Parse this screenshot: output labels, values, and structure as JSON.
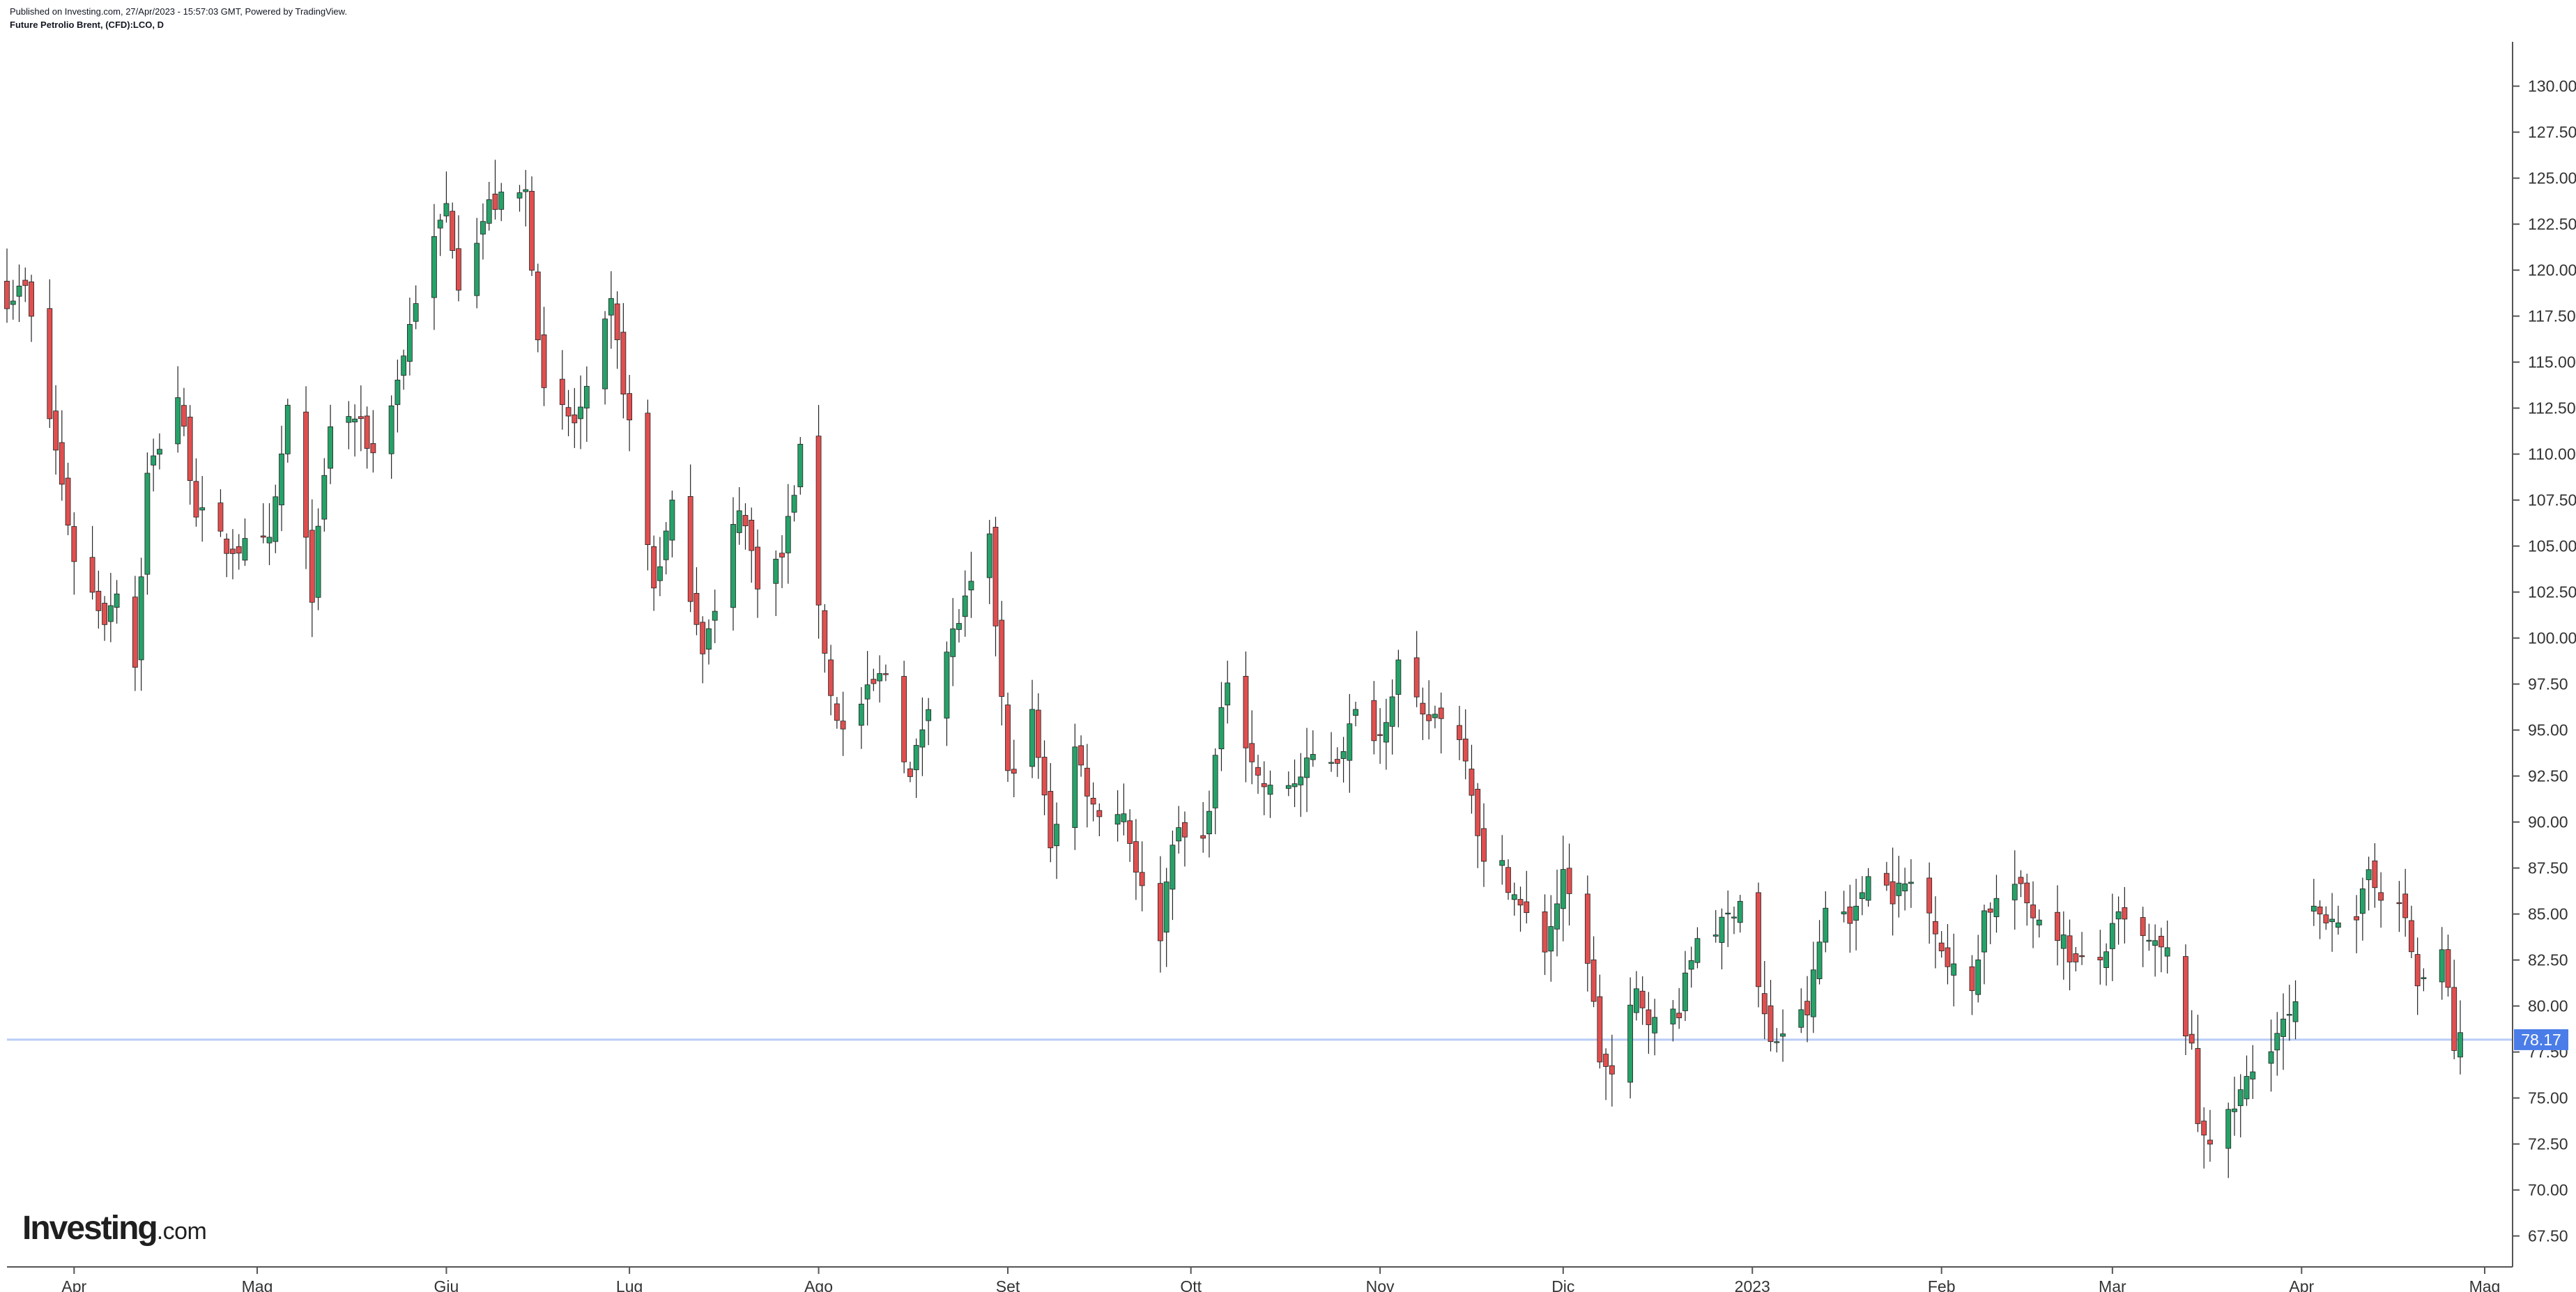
{
  "header": {
    "published": "Published on Investing.com, 27/Apr/2023 - 15:57:03 GMT, Powered by TradingView.",
    "instrument": "Future Petrolio Brent, (CFD):LCO, D"
  },
  "logo": {
    "main": "Investing",
    "suffix": ".com"
  },
  "colors": {
    "up": "#26a269",
    "down": "#e04f4f",
    "wick": "#222222",
    "price_line": "#b8cdf5",
    "price_label_bg": "#4a7de8"
  },
  "chart_data": {
    "type": "candlestick",
    "y_ticks": [
      "130.00",
      "127.50",
      "125.00",
      "122.50",
      "120.00",
      "117.50",
      "115.00",
      "112.50",
      "110.00",
      "107.50",
      "105.00",
      "102.50",
      "100.00",
      "97.50",
      "95.00",
      "92.50",
      "90.00",
      "87.50",
      "85.00",
      "82.50",
      "80.00",
      "77.50",
      "75.00",
      "72.50",
      "70.00",
      "67.50"
    ],
    "ylim": [
      66.5,
      131.5
    ],
    "x_labels": [
      {
        "label": "Apr",
        "date": "2022-04-01"
      },
      {
        "label": "Mag",
        "date": "2022-05-01"
      },
      {
        "label": "Giu",
        "date": "2022-06-01"
      },
      {
        "label": "Lug",
        "date": "2022-07-01"
      },
      {
        "label": "Ago",
        "date": "2022-08-01"
      },
      {
        "label": "Set",
        "date": "2022-09-01"
      },
      {
        "label": "Ott",
        "date": "2022-10-01"
      },
      {
        "label": "Nov",
        "date": "2022-11-01"
      },
      {
        "label": "Dic",
        "date": "2022-12-01"
      },
      {
        "label": "2023",
        "date": "2023-01-01"
      },
      {
        "label": "Feb",
        "date": "2023-02-01"
      },
      {
        "label": "Mar",
        "date": "2023-03-01"
      },
      {
        "label": "Apr",
        "date": "2023-04-01"
      },
      {
        "label": "Mag",
        "date": "2023-05-01"
      }
    ],
    "x_start": "2022-03-21",
    "x_end": "2023-05-05",
    "last_price": "78.17",
    "anchors": [
      {
        "date": "2022-03-21",
        "close": 118.5
      },
      {
        "date": "2022-03-24",
        "close": 119.0
      },
      {
        "date": "2022-03-29",
        "close": 110.2
      },
      {
        "date": "2022-04-01",
        "close": 104.4
      },
      {
        "date": "2022-04-06",
        "close": 101.1
      },
      {
        "date": "2022-04-08",
        "close": 102.8
      },
      {
        "date": "2022-04-11",
        "close": 98.5
      },
      {
        "date": "2022-04-13",
        "close": 108.8
      },
      {
        "date": "2022-04-18",
        "close": 113.2
      },
      {
        "date": "2022-04-21",
        "close": 107.0
      },
      {
        "date": "2022-04-26",
        "close": 104.9
      },
      {
        "date": "2022-05-03",
        "close": 105.0
      },
      {
        "date": "2022-05-06",
        "close": 112.4
      },
      {
        "date": "2022-05-10",
        "close": 102.5
      },
      {
        "date": "2022-05-13",
        "close": 111.6
      },
      {
        "date": "2022-05-17",
        "close": 112.0
      },
      {
        "date": "2022-05-20",
        "close": 110.0
      },
      {
        "date": "2022-05-24",
        "close": 114.0
      },
      {
        "date": "2022-05-27",
        "close": 118.5
      },
      {
        "date": "2022-06-01",
        "close": 123.5
      },
      {
        "date": "2022-06-03",
        "close": 119.5
      },
      {
        "date": "2022-06-08",
        "close": 123.5
      },
      {
        "date": "2022-06-14",
        "close": 124.2
      },
      {
        "date": "2022-06-17",
        "close": 113.1
      },
      {
        "date": "2022-06-22",
        "close": 111.7
      },
      {
        "date": "2022-06-24",
        "close": 113.1
      },
      {
        "date": "2022-06-28",
        "close": 118.0
      },
      {
        "date": "2022-07-01",
        "close": 111.6
      },
      {
        "date": "2022-07-05",
        "close": 102.8
      },
      {
        "date": "2022-07-08",
        "close": 107.0
      },
      {
        "date": "2022-07-13",
        "close": 99.6
      },
      {
        "date": "2022-07-15",
        "close": 101.2
      },
      {
        "date": "2022-07-19",
        "close": 107.4
      },
      {
        "date": "2022-07-22",
        "close": 103.2
      },
      {
        "date": "2022-07-26",
        "close": 104.4
      },
      {
        "date": "2022-07-29",
        "close": 110.0
      },
      {
        "date": "2022-08-03",
        "close": 96.8
      },
      {
        "date": "2022-08-05",
        "close": 94.9
      },
      {
        "date": "2022-08-10",
        "close": 97.4
      },
      {
        "date": "2022-08-12",
        "close": 98.2
      },
      {
        "date": "2022-08-16",
        "close": 92.3
      },
      {
        "date": "2022-08-19",
        "close": 96.7
      },
      {
        "date": "2022-08-23",
        "close": 100.2
      },
      {
        "date": "2022-08-29",
        "close": 105.1
      },
      {
        "date": "2022-09-01",
        "close": 92.4
      },
      {
        "date": "2022-09-05",
        "close": 95.7
      },
      {
        "date": "2022-09-08",
        "close": 88.9
      },
      {
        "date": "2022-09-12",
        "close": 94.0
      },
      {
        "date": "2022-09-15",
        "close": 90.8
      },
      {
        "date": "2022-09-20",
        "close": 90.5
      },
      {
        "date": "2022-09-23",
        "close": 86.2
      },
      {
        "date": "2022-09-26",
        "close": 84.0
      },
      {
        "date": "2022-09-28",
        "close": 89.3
      },
      {
        "date": "2022-10-03",
        "close": 88.9
      },
      {
        "date": "2022-10-05",
        "close": 93.4
      },
      {
        "date": "2022-10-07",
        "close": 97.9
      },
      {
        "date": "2022-10-12",
        "close": 92.4
      },
      {
        "date": "2022-10-14",
        "close": 91.6
      },
      {
        "date": "2022-10-19",
        "close": 92.4
      },
      {
        "date": "2022-10-21",
        "close": 93.5
      },
      {
        "date": "2022-10-25",
        "close": 93.5
      },
      {
        "date": "2022-10-28",
        "close": 95.8
      },
      {
        "date": "2022-11-01",
        "close": 94.7
      },
      {
        "date": "2022-11-04",
        "close": 98.6
      },
      {
        "date": "2022-11-08",
        "close": 95.4
      },
      {
        "date": "2022-11-11",
        "close": 96.0
      },
      {
        "date": "2022-11-15",
        "close": 93.9
      },
      {
        "date": "2022-11-18",
        "close": 87.6
      },
      {
        "date": "2022-11-21",
        "close": 87.5
      },
      {
        "date": "2022-11-24",
        "close": 85.3
      },
      {
        "date": "2022-11-28",
        "close": 83.2
      },
      {
        "date": "2022-12-01",
        "close": 86.9
      },
      {
        "date": "2022-12-05",
        "close": 82.7
      },
      {
        "date": "2022-12-07",
        "close": 77.2
      },
      {
        "date": "2022-12-09",
        "close": 76.1
      },
      {
        "date": "2022-12-13",
        "close": 80.7
      },
      {
        "date": "2022-12-16",
        "close": 79.0
      },
      {
        "date": "2022-12-20",
        "close": 79.9
      },
      {
        "date": "2022-12-23",
        "close": 83.9
      },
      {
        "date": "2022-12-27",
        "close": 84.3
      },
      {
        "date": "2022-12-30",
        "close": 85.9
      },
      {
        "date": "2023-01-04",
        "close": 77.8
      },
      {
        "date": "2023-01-06",
        "close": 78.6
      },
      {
        "date": "2023-01-10",
        "close": 79.7
      },
      {
        "date": "2023-01-13",
        "close": 85.3
      },
      {
        "date": "2023-01-18",
        "close": 85.0
      },
      {
        "date": "2023-01-20",
        "close": 87.6
      },
      {
        "date": "2023-01-24",
        "close": 86.1
      },
      {
        "date": "2023-01-27",
        "close": 86.7
      },
      {
        "date": "2023-01-31",
        "close": 84.5
      },
      {
        "date": "2023-02-02",
        "close": 82.2
      },
      {
        "date": "2023-02-06",
        "close": 80.9
      },
      {
        "date": "2023-02-08",
        "close": 85.1
      },
      {
        "date": "2023-02-13",
        "close": 86.6
      },
      {
        "date": "2023-02-16",
        "close": 85.1
      },
      {
        "date": "2023-02-20",
        "close": 84.1
      },
      {
        "date": "2023-02-23",
        "close": 82.2
      },
      {
        "date": "2023-02-27",
        "close": 82.5
      },
      {
        "date": "2023-03-02",
        "close": 84.7
      },
      {
        "date": "2023-03-07",
        "close": 83.3
      },
      {
        "date": "2023-03-10",
        "close": 82.8
      },
      {
        "date": "2023-03-14",
        "close": 77.4
      },
      {
        "date": "2023-03-15",
        "close": 73.7
      },
      {
        "date": "2023-03-17",
        "close": 72.9
      },
      {
        "date": "2023-03-20",
        "close": 73.8
      },
      {
        "date": "2023-03-23",
        "close": 75.9
      },
      {
        "date": "2023-03-27",
        "close": 78.1
      },
      {
        "date": "2023-03-30",
        "close": 79.3
      },
      {
        "date": "2023-03-31",
        "close": 79.8
      },
      {
        "date": "2023-04-03",
        "close": 84.9
      },
      {
        "date": "2023-04-06",
        "close": 85.1
      },
      {
        "date": "2023-04-10",
        "close": 84.2
      },
      {
        "date": "2023-04-12",
        "close": 87.4
      },
      {
        "date": "2023-04-14",
        "close": 86.3
      },
      {
        "date": "2023-04-18",
        "close": 84.8
      },
      {
        "date": "2023-04-20",
        "close": 81.1
      },
      {
        "date": "2023-04-24",
        "close": 82.7
      },
      {
        "date": "2023-04-25",
        "close": 80.8
      },
      {
        "date": "2023-04-26",
        "close": 77.7
      },
      {
        "date": "2023-04-27",
        "close": 78.17
      }
    ],
    "gap_after": "2023-03-31"
  }
}
